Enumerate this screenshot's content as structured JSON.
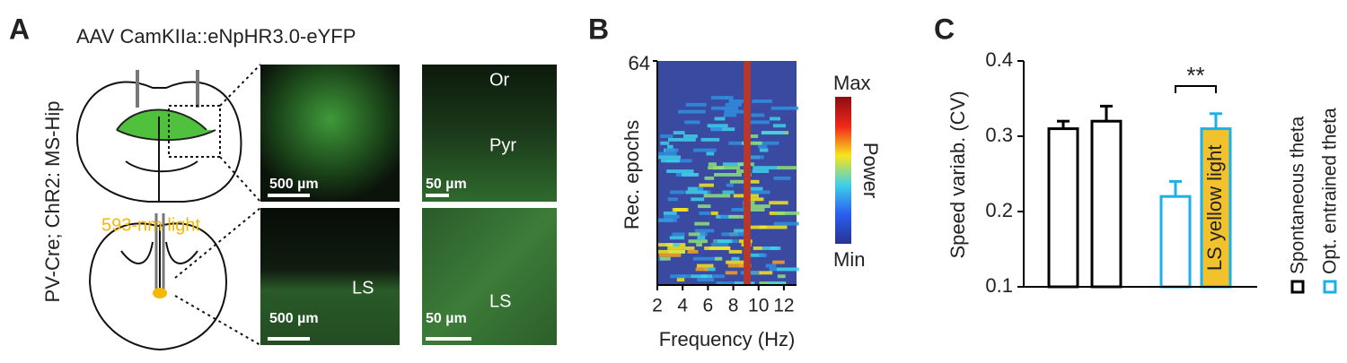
{
  "panel_a": {
    "label": "A",
    "title": "AAV CamKIIa::eNpHR3.0-eYFP",
    "side_label": "PV-Cre; ChR2: MS-Hip",
    "light_label": "593-nm light",
    "images": [
      {
        "scale": "500 µm",
        "regions": []
      },
      {
        "scale": "50 µm",
        "regions": [
          "Or",
          "Pyr"
        ]
      },
      {
        "scale": "500 µm",
        "regions": [
          "LS"
        ]
      },
      {
        "scale": "50 µm",
        "regions": [
          "LS"
        ]
      }
    ]
  },
  "chart_data": [
    {
      "type": "heatmap",
      "panel_label": "B",
      "x_label": "Frequency (Hz)",
      "y_label": "Rec. epochs",
      "xlim": [
        2,
        13
      ],
      "xticks": [
        2,
        4,
        6,
        8,
        10,
        12
      ],
      "ylim": [
        0,
        64
      ],
      "yticks": [
        64
      ],
      "colorbar": {
        "max_label": "Max",
        "min_label": "Min",
        "label": "Power"
      }
    },
    {
      "type": "bar",
      "panel_label": "C",
      "y_label": "Speed variab. (CV)",
      "ylim": [
        0.1,
        0.4
      ],
      "yticks": [
        0.1,
        0.2,
        0.3,
        0.4
      ],
      "categories": [
        null,
        null,
        null,
        null
      ],
      "series": [
        {
          "name": "Spontaneous theta",
          "color": "#000000",
          "values": [
            0.31,
            0.32,
            null,
            null
          ],
          "errors": [
            0.01,
            0.02,
            null,
            null
          ]
        },
        {
          "name": "Opt. entrained theta",
          "color": "#1ab0ea",
          "values": [
            null,
            null,
            0.22,
            0.31
          ],
          "errors": [
            null,
            null,
            0.02,
            0.02
          ]
        }
      ],
      "highlight": {
        "series": 1,
        "index": 3,
        "text": "LS yellow light",
        "color": "#f2c12e"
      },
      "significance": {
        "text": "**",
        "between": [
          2,
          3
        ]
      }
    }
  ]
}
